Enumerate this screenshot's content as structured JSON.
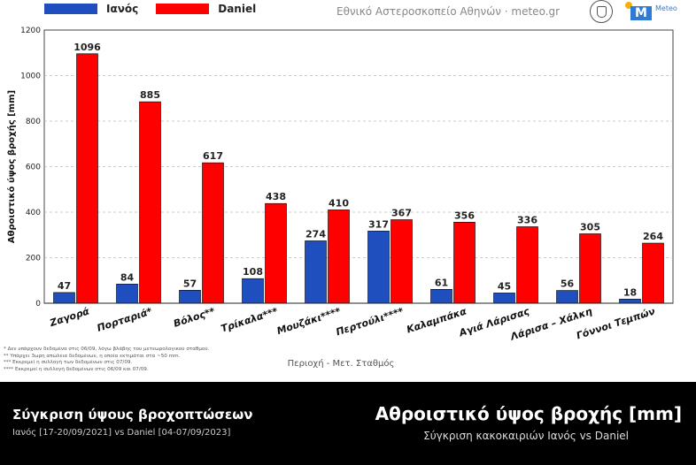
{
  "header": {
    "source": "Εθνικό Αστεροσκοπείο Αθηνών · meteo.gr",
    "logo_text": "Meteo"
  },
  "legend": [
    {
      "label": "Ιανός",
      "color": "#1f4fbf"
    },
    {
      "label": "Daniel",
      "color": "#ff0000"
    }
  ],
  "chart_data": {
    "type": "bar",
    "title": "Αθροιστικό ύψος βροχής [mm]",
    "subtitle": "Σύγκριση κακοκαιριών Ιανός vs Daniel",
    "xlabel": "Περιοχή - Μετ. Σταθμός",
    "ylabel": "Αθροιστικό ύψος βροχής [mm]",
    "ylim": [
      0,
      1200
    ],
    "yticks": [
      0,
      200,
      400,
      600,
      800,
      1000,
      1200
    ],
    "grid": true,
    "categories": [
      "Ζαγορά",
      "Πορταριά*",
      "Βόλος**",
      "Τρίκαλα***",
      "Μουζάκι****",
      "Περτούλι****",
      "Καλαμπάκα",
      "Αγιά Λάρισας",
      "Λάρισα – Χάλκη",
      "Γόννοι Τεμπών"
    ],
    "series": [
      {
        "name": "Ιανός",
        "color": "#1f4fbf",
        "values": [
          47,
          84,
          57,
          108,
          274,
          317,
          61,
          45,
          56,
          18
        ]
      },
      {
        "name": "Daniel",
        "color": "#ff0000",
        "values": [
          1096,
          885,
          617,
          438,
          410,
          367,
          356,
          336,
          305,
          264
        ]
      }
    ]
  },
  "footnotes": [
    "* Δεν υπάρχουν δεδομένα στις 06/09, λόγω βλάβης του μετεωρολογικού σταθμού.",
    "** Υπάρχει 3ωρη απώλεια δεδομένων, η οποία εκτιμάται στα ~50 mm.",
    "*** Εκκρεμεί η συλλογή των δεδομένων στις 07/09.",
    "**** Εκκρεμεί η συλλογή δεδομένων στις 06/09 και 07/09."
  ],
  "bottom": {
    "left_title": "Σύγκριση ύψους βροχοπτώσεων",
    "left_subtitle": "Ιανός [17-20/09/2021] vs Daniel [04-07/09/2023]",
    "right_title": "Αθροιστικό ύψος βροχής [mm]",
    "right_subtitle": "Σύγκριση κακοκαιριών Ιανός vs Daniel"
  }
}
